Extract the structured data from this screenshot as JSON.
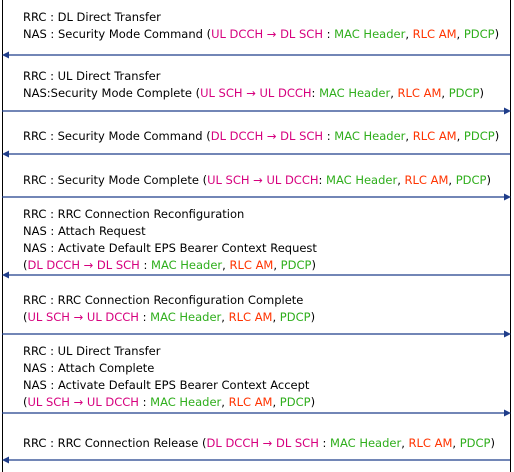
{
  "colors": {
    "pink": "#d6007e",
    "green": "#2fae1c",
    "orange": "#ff3300",
    "black": "#000000"
  },
  "messages": [
    {
      "direction": "left",
      "lines": [
        [
          {
            "t": "RRC : DL Direct Transfer",
            "c": "black"
          }
        ],
        [
          {
            "t": "NAS : Security Mode Command (",
            "c": "black"
          },
          {
            "t": "UL DCCH → DL SCH",
            "c": "pink"
          },
          {
            "t": " : ",
            "c": "black"
          },
          {
            "t": "MAC Header",
            "c": "green"
          },
          {
            "t": ", ",
            "c": "black"
          },
          {
            "t": "RLC AM",
            "c": "orange"
          },
          {
            "t": ", ",
            "c": "black"
          },
          {
            "t": "PDCP",
            "c": "green"
          },
          {
            "t": ")",
            "c": "black"
          }
        ]
      ]
    },
    {
      "direction": "right",
      "lines": [
        [
          {
            "t": "RRC : UL Direct Transfer",
            "c": "black"
          }
        ],
        [
          {
            "t": "NAS:Security Mode Complete (",
            "c": "black"
          },
          {
            "t": "UL SCH → UL DCCH",
            "c": "pink"
          },
          {
            "t": ": ",
            "c": "black"
          },
          {
            "t": "MAC Header",
            "c": "green"
          },
          {
            "t": ", ",
            "c": "black"
          },
          {
            "t": "RLC AM",
            "c": "orange"
          },
          {
            "t": ", ",
            "c": "black"
          },
          {
            "t": "PDCP",
            "c": "green"
          },
          {
            "t": ")",
            "c": "black"
          }
        ]
      ]
    },
    {
      "direction": "left",
      "lines": [
        [
          {
            "t": "RRC : Security Mode Command (",
            "c": "black"
          },
          {
            "t": "DL DCCH → DL SCH",
            "c": "pink"
          },
          {
            "t": " : ",
            "c": "black"
          },
          {
            "t": "MAC Header",
            "c": "green"
          },
          {
            "t": ", ",
            "c": "black"
          },
          {
            "t": "RLC AM",
            "c": "orange"
          },
          {
            "t": ", ",
            "c": "black"
          },
          {
            "t": "PDCP",
            "c": "green"
          },
          {
            "t": ")",
            "c": "black"
          }
        ]
      ]
    },
    {
      "direction": "right",
      "lines": [
        [
          {
            "t": "RRC : Security Mode Complete (",
            "c": "black"
          },
          {
            "t": "UL SCH → UL DCCH",
            "c": "pink"
          },
          {
            "t": ": ",
            "c": "black"
          },
          {
            "t": "MAC Header",
            "c": "green"
          },
          {
            "t": ", ",
            "c": "black"
          },
          {
            "t": "RLC AM",
            "c": "orange"
          },
          {
            "t": ", ",
            "c": "black"
          },
          {
            "t": "PDCP",
            "c": "green"
          },
          {
            "t": ")",
            "c": "black"
          }
        ]
      ]
    },
    {
      "direction": "left",
      "lines": [
        [
          {
            "t": "RRC : RRC Connection Reconfiguration",
            "c": "black"
          }
        ],
        [
          {
            "t": "NAS : Attach Request",
            "c": "black"
          }
        ],
        [
          {
            "t": "NAS : Activate Default EPS Bearer Context Request",
            "c": "black"
          }
        ],
        [
          {
            "t": "(",
            "c": "black"
          },
          {
            "t": "DL DCCH → DL SCH",
            "c": "pink"
          },
          {
            "t": " : ",
            "c": "black"
          },
          {
            "t": "MAC Header",
            "c": "green"
          },
          {
            "t": ", ",
            "c": "black"
          },
          {
            "t": "RLC AM",
            "c": "orange"
          },
          {
            "t": ", ",
            "c": "black"
          },
          {
            "t": "PDCP",
            "c": "green"
          },
          {
            "t": ")",
            "c": "black"
          }
        ]
      ]
    },
    {
      "direction": "right",
      "lines": [
        [
          {
            "t": "RRC : RRC Connection Reconfiguration Complete",
            "c": "black"
          }
        ],
        [
          {
            "t": "(",
            "c": "black"
          },
          {
            "t": "UL SCH → UL DCCH",
            "c": "pink"
          },
          {
            "t": " : ",
            "c": "black"
          },
          {
            "t": "MAC Header",
            "c": "green"
          },
          {
            "t": ", ",
            "c": "black"
          },
          {
            "t": "RLC AM",
            "c": "orange"
          },
          {
            "t": ", ",
            "c": "black"
          },
          {
            "t": "PDCP",
            "c": "green"
          },
          {
            "t": ")",
            "c": "black"
          }
        ]
      ]
    },
    {
      "direction": "right",
      "lines": [
        [
          {
            "t": "RRC : UL Direct Transfer",
            "c": "black"
          }
        ],
        [
          {
            "t": "NAS : Attach Complete",
            "c": "black"
          }
        ],
        [
          {
            "t": "NAS : Activate Default EPS Bearer Context Accept",
            "c": "black"
          }
        ],
        [
          {
            "t": "(",
            "c": "black"
          },
          {
            "t": "UL SCH → UL DCCH",
            "c": "pink"
          },
          {
            "t": " : ",
            "c": "black"
          },
          {
            "t": "MAC Header",
            "c": "green"
          },
          {
            "t": ", ",
            "c": "black"
          },
          {
            "t": "RLC AM",
            "c": "orange"
          },
          {
            "t": ", ",
            "c": "black"
          },
          {
            "t": "PDCP",
            "c": "green"
          },
          {
            "t": ")",
            "c": "black"
          }
        ]
      ]
    },
    {
      "direction": "left",
      "lines": [
        [
          {
            "t": "RRC : RRC Connection Release (",
            "c": "black"
          },
          {
            "t": "DL DCCH → DL SCH",
            "c": "pink"
          },
          {
            "t": " : ",
            "c": "black"
          },
          {
            "t": "MAC Header",
            "c": "green"
          },
          {
            "t": ", ",
            "c": "black"
          },
          {
            "t": "RLC AM",
            "c": "orange"
          },
          {
            "t": ", ",
            "c": "black"
          },
          {
            "t": "PDCP",
            "c": "green"
          },
          {
            "t": ")",
            "c": "black"
          }
        ]
      ]
    }
  ]
}
